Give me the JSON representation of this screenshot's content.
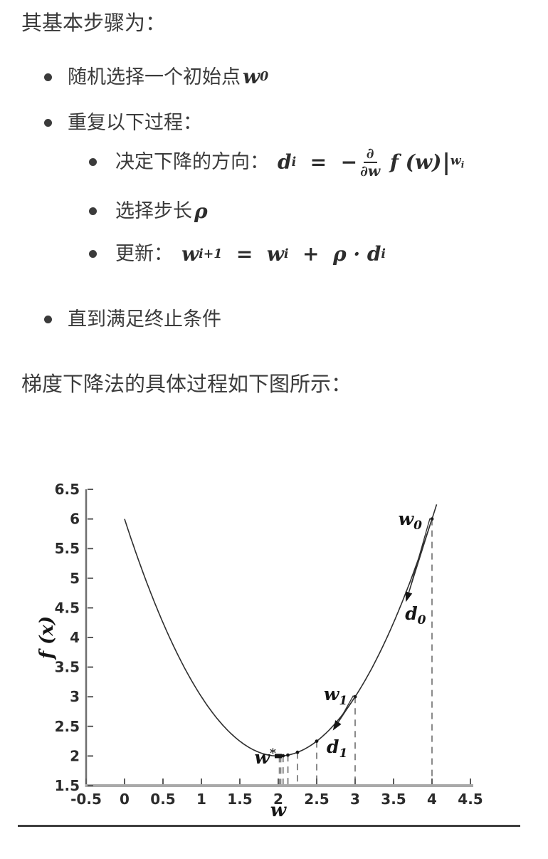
{
  "article": {
    "intro": "其基本步骤为：",
    "bullets": {
      "b1_prefix": "随机选择一个初始点",
      "b2": "重复以下过程：",
      "s1_prefix": "决定下降的方向：",
      "s2_prefix": "选择步长",
      "s3_prefix": "更新：",
      "b3": "直到满足终止条件"
    },
    "caption": "梯度下降法的具体过程如下图所示：",
    "math": {
      "w0_tokens": [
        {
          "t": "w",
          "sub": "0"
        }
      ],
      "rho_tokens": [
        {
          "t": "ρ"
        }
      ],
      "direction_tokens": [
        {
          "t": "d",
          "sub": "i"
        },
        {
          "t": "  =  −"
        },
        {
          "frac": [
            "∂",
            "∂w"
          ]
        },
        {
          "t": " f (w)"
        },
        {
          "t": "|",
          "cls": "bar",
          "subm": "w",
          "subs": "i"
        }
      ],
      "update_tokens": [
        {
          "t": "w",
          "sub": "i+1"
        },
        {
          "t": "  =  "
        },
        {
          "t": "w",
          "sub": "i"
        },
        {
          "t": "  +  "
        },
        {
          "t": "ρ"
        },
        {
          "t": " · "
        },
        {
          "t": "d",
          "sub": "i"
        }
      ]
    }
  },
  "chart_data": {
    "type": "line",
    "title": "",
    "xlabel": "w",
    "ylabel": "f (x)",
    "xlim": [
      -0.5,
      4.5
    ],
    "ylim": [
      1.5,
      6.5
    ],
    "grid": false,
    "legend": null,
    "xticks": [
      "-0.5",
      "0",
      "0.5",
      "1",
      "1.5",
      "2",
      "2.5",
      "3",
      "3.5",
      "4",
      "4.5"
    ],
    "yticks": [
      "1.5",
      "2",
      "2.5",
      "3",
      "3.5",
      "4",
      "4.5",
      "5",
      "5.5",
      "6",
      "6.5"
    ],
    "function": {
      "formula": "f(w) = (w − 2)² + 2",
      "a": 1,
      "h": 2,
      "k": 2,
      "x_range": [
        0,
        4.06
      ]
    },
    "iterates_w": [
      4,
      3,
      2.5,
      2.25,
      2.125,
      2.0625,
      2.03125,
      2.015625
    ],
    "iterates_f": [
      6,
      3,
      2.25,
      2.0625,
      2.015625,
      2.00390625,
      2.0009765625,
      2.000244140625
    ],
    "optimum": {
      "w": 2,
      "f": 2
    },
    "arrows": [
      {
        "name": "d0",
        "from_w": 4,
        "from_f": 6,
        "to_w": 3.66,
        "to_f": 4.6
      },
      {
        "name": "d1",
        "from_w": 3,
        "from_f": 3,
        "to_w": 2.71,
        "to_f": 2.43
      }
    ],
    "labels": [
      {
        "name": "w0",
        "main": "w",
        "sub": "0",
        "x": 3.87,
        "y": 5.9,
        "anchor": "end"
      },
      {
        "name": "d0",
        "main": "d",
        "sub": "0",
        "x": 3.65,
        "y": 4.3,
        "anchor": "start"
      },
      {
        "name": "w1",
        "main": "w",
        "sub": "1",
        "x": 2.9,
        "y": 2.94,
        "anchor": "end"
      },
      {
        "name": "d1",
        "main": "d",
        "sub": "1",
        "x": 2.63,
        "y": 2.05,
        "anchor": "start"
      },
      {
        "name": "w-star",
        "main": "w",
        "sup": "*",
        "x": 1.69,
        "y": 1.87,
        "anchor": "start"
      }
    ],
    "colors": {
      "curve": "#2f2f2f",
      "dashed": "#8a8a8a",
      "axis_left": "#6f6f6f",
      "axis_bottom": "#a9a9a9",
      "tick": "#5a5a5a",
      "tick_label": "#2b2b2b",
      "label": "#141414",
      "marker": "#151515"
    }
  },
  "theme": {
    "text": "#3b3b3b",
    "background": "#ffffff",
    "divider": "#3f3f3f"
  }
}
